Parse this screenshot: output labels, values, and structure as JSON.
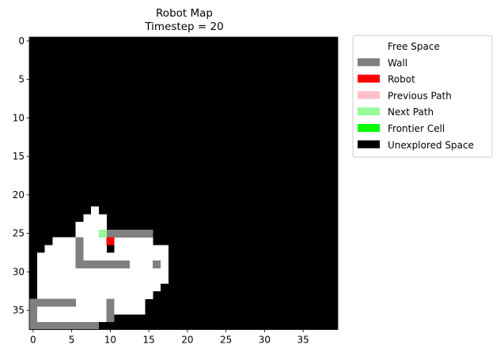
{
  "chart_data": {
    "type": "heatmap",
    "title": "Robot Map",
    "subtitle": "Timestep = 20",
    "grid": {
      "cols": 40,
      "rows": 38
    },
    "xticks": [
      0,
      5,
      10,
      15,
      20,
      25,
      30,
      35
    ],
    "yticks": [
      0,
      5,
      10,
      15,
      20,
      25,
      30,
      35
    ],
    "xlim": [
      -0.5,
      39.5
    ],
    "ylim": [
      -0.5,
      37.5
    ],
    "grid_lines": false,
    "legend_position": "outside-upper-right",
    "legend": [
      {
        "key": "free",
        "label": "Free Space",
        "color": "#ffffff"
      },
      {
        "key": "wall",
        "label": "Wall",
        "color": "#808080"
      },
      {
        "key": "robot",
        "label": "Robot",
        "color": "#ff0000"
      },
      {
        "key": "prev",
        "label": "Previous Path",
        "color": "#ffc0cb"
      },
      {
        "key": "next",
        "label": "Next Path",
        "color": "#98fb98"
      },
      {
        "key": "frontier",
        "label": "Frontier Cell",
        "color": "#00ff00"
      },
      {
        "key": "unexplored",
        "label": "Unexplored Space",
        "color": "#000000"
      }
    ],
    "background_category": "unexplored",
    "cells": {
      "free": [
        [
          8,
          22,
          1
        ],
        [
          7,
          23,
          3
        ],
        [
          6,
          24,
          4
        ],
        [
          6,
          25,
          3
        ],
        [
          3,
          26,
          3
        ],
        [
          7,
          26,
          3
        ],
        [
          11,
          26,
          5
        ],
        [
          2,
          27,
          4
        ],
        [
          7,
          27,
          3
        ],
        [
          11,
          27,
          7
        ],
        [
          1,
          28,
          5
        ],
        [
          7,
          28,
          11
        ],
        [
          1,
          29,
          5
        ],
        [
          13,
          29,
          3
        ],
        [
          17,
          29,
          1
        ],
        [
          1,
          30,
          17
        ],
        [
          1,
          31,
          17
        ],
        [
          1,
          32,
          16
        ],
        [
          1,
          33,
          15
        ],
        [
          6,
          34,
          4
        ],
        [
          11,
          34,
          4
        ],
        [
          1,
          35,
          9
        ],
        [
          11,
          35,
          4
        ],
        [
          1,
          36,
          9
        ]
      ],
      "wall": [
        [
          10,
          25,
          6
        ],
        [
          6,
          26,
          1
        ],
        [
          6,
          27,
          1
        ],
        [
          6,
          28,
          1
        ],
        [
          6,
          29,
          7
        ],
        [
          16,
          29,
          1
        ],
        [
          0,
          34,
          6
        ],
        [
          10,
          34,
          1
        ],
        [
          0,
          35,
          1
        ],
        [
          10,
          35,
          1
        ],
        [
          0,
          36,
          1
        ],
        [
          10,
          36,
          1
        ],
        [
          0,
          37,
          9
        ]
      ],
      "robot": [
        [
          10,
          26,
          1
        ]
      ],
      "prev": [],
      "next": [
        [
          9,
          25,
          1
        ]
      ],
      "frontier": []
    }
  }
}
